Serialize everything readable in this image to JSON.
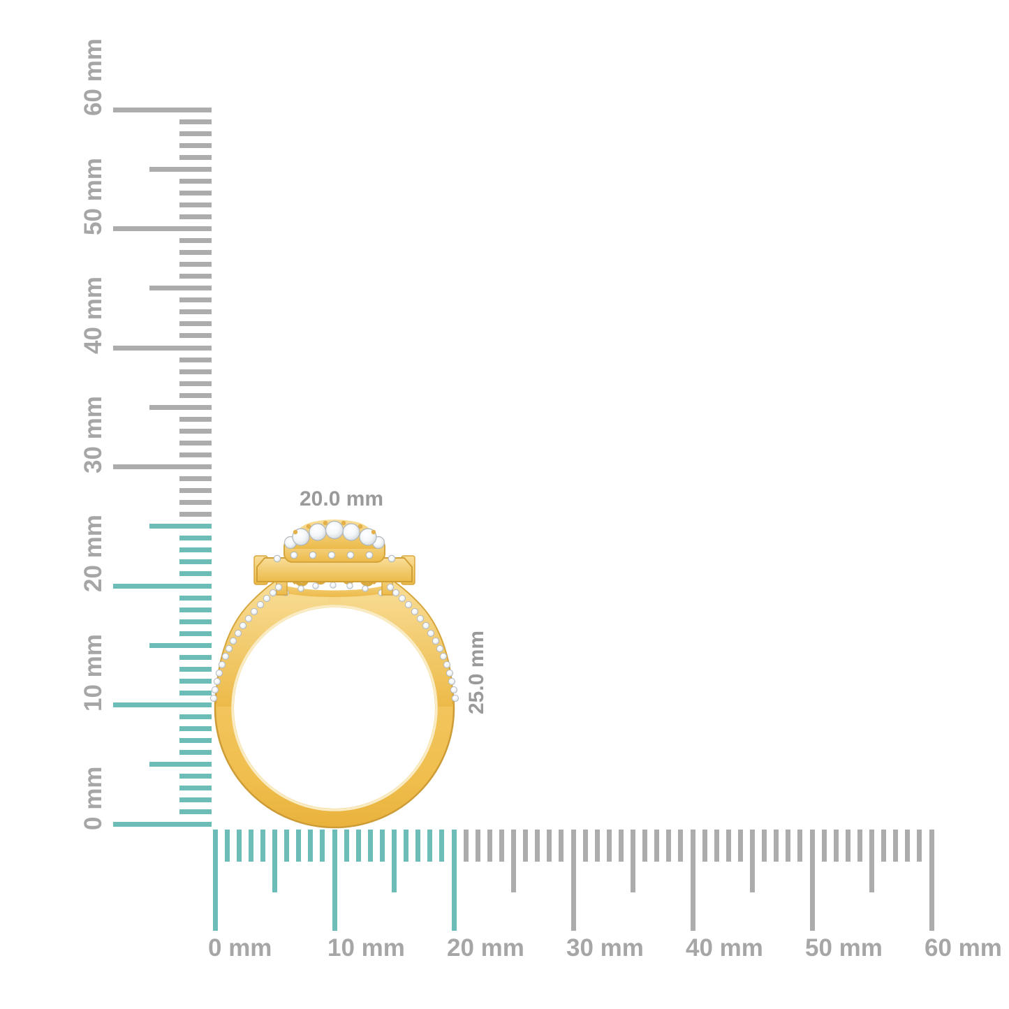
{
  "dimension_labels": {
    "width": "20.0 mm",
    "height": "25.0 mm"
  },
  "rulers": {
    "unit": "mm",
    "vertical": {
      "major_labels": [
        "0 mm",
        "10 mm",
        "20 mm",
        "30 mm",
        "40 mm",
        "50 mm",
        "60 mm"
      ],
      "range_mm": [
        0,
        60
      ],
      "tick_step_mm": 1,
      "mid_tick_step_mm": 5,
      "major_tick_step_mm": 10,
      "highlight_until_mm": 25
    },
    "horizontal": {
      "major_labels": [
        "0 mm",
        "10 mm",
        "20 mm",
        "30 mm",
        "40 mm",
        "50 mm",
        "60 mm"
      ],
      "range_mm": [
        0,
        60
      ],
      "tick_step_mm": 1,
      "mid_tick_step_mm": 5,
      "major_tick_step_mm": 10,
      "highlight_until_mm": 20
    }
  },
  "colors": {
    "highlight_teal": "#6CBCB7",
    "tick_gray": "#ACACAC",
    "ruler_label_gray": "#A6A6A6",
    "dimension_label_gray": "#9A9A9A",
    "gold": "#F2C65F",
    "gold_dark": "#CD9C36",
    "gold_light": "#F9DE99",
    "diamond_white": "#FFFFFF",
    "background": "#FFFFFF"
  }
}
